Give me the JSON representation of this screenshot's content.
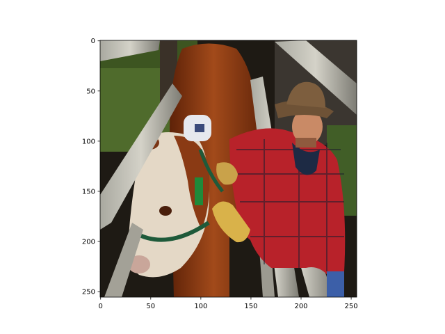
{
  "chart_data": {
    "type": "image",
    "title": "",
    "xlabel": "",
    "ylabel": "",
    "xlim": [
      0,
      256
    ],
    "ylim": [
      256,
      0
    ],
    "x_ticks": [
      0,
      50,
      100,
      150,
      200,
      250
    ],
    "y_ticks": [
      0,
      50,
      100,
      150,
      200,
      250
    ],
    "image_content": "rancher in cowboy hat and red plaid shirt with leather work gloves handling a Hereford cow with green halter between wooden corral rails",
    "grid": false
  },
  "colors": {
    "axis": "#000000",
    "cow_red": "#8a3a14",
    "cow_white": "#e8ded0",
    "shirt_red": "#b8222a",
    "rail_grey": "#8f8f87",
    "grass": "#4f6b2c",
    "glove": "#d9b24a",
    "hat": "#6e5236"
  }
}
